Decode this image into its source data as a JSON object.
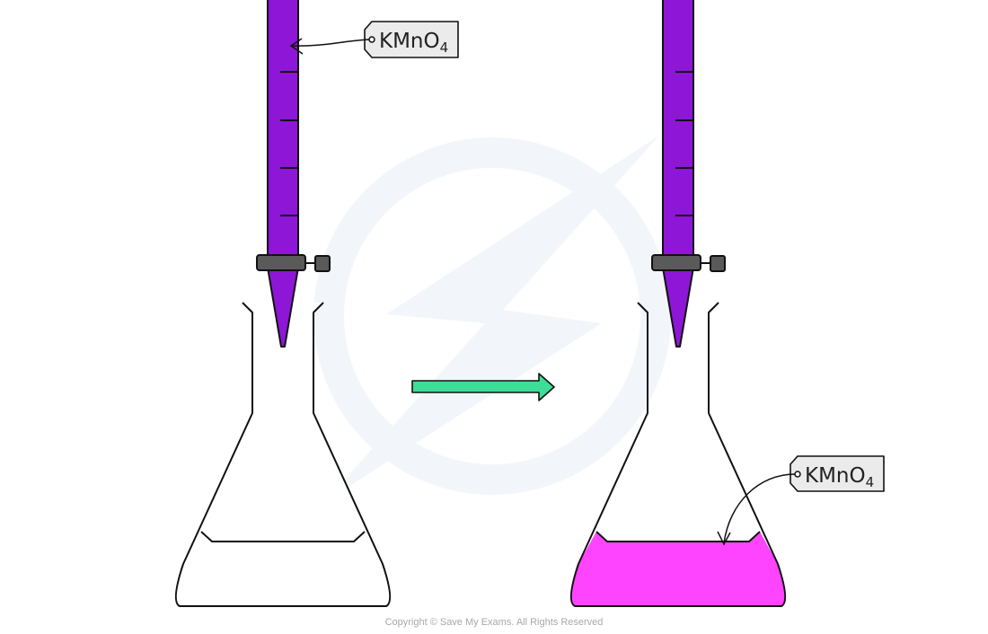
{
  "labels": {
    "burette_left": {
      "main": "KMnO",
      "sub": "4"
    },
    "burette_right": {
      "main": "KMnO",
      "sub": "4"
    },
    "flask_right": {
      "main": "KMnO",
      "sub": "4"
    }
  },
  "copyright": "Copyright © Save My Exams. All Rights Reserved",
  "colors": {
    "burette_fill": "#8e16d6",
    "flask_solution": "#ff44ff",
    "arrow": "#3ddc97",
    "clamp": "#5a5a5a",
    "label_fill": "#ebebeb",
    "watermark": "#f1f6fb"
  }
}
